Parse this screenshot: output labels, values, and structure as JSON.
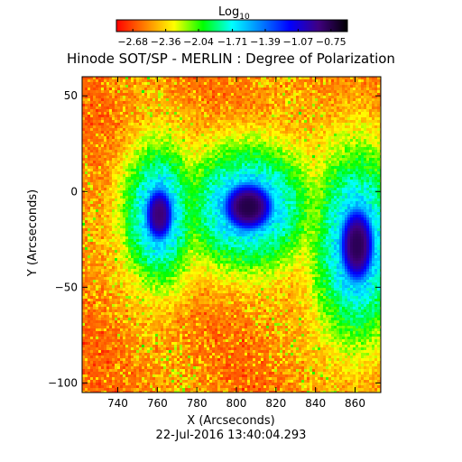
{
  "chart_data": {
    "type": "heatmap",
    "title": "Hinode SOT/SP - MERLIN : Degree of Polarization",
    "colorbar": {
      "label": "Log",
      "label_subscript": "10",
      "ticks": [
        "-2.68",
        "-2.36",
        "-2.04",
        "-1.71",
        "-1.39",
        "-1.07",
        "-0.75"
      ],
      "range": [
        -2.84,
        -0.59
      ],
      "colors": [
        "#ff0000",
        "#ff8000",
        "#ffff00",
        "#00ff00",
        "#00ffff",
        "#0080ff",
        "#0000ff",
        "#400080",
        "#000000"
      ]
    },
    "xlabel": "X (Arcseconds)",
    "ylabel": "Y (Arcseconds)",
    "xlim": [
      722,
      873
    ],
    "ylim": [
      -105,
      60
    ],
    "xticks": [
      740,
      760,
      780,
      800,
      820,
      840,
      860
    ],
    "yticks": [
      50,
      0,
      -50,
      -100
    ],
    "date_label": "22-Jul-2016 13:40:04.293",
    "features": [
      {
        "x": 761,
        "y": -12,
        "rx": 9,
        "ry": 18,
        "peak": -0.85
      },
      {
        "x": 806,
        "y": -8,
        "rx": 16,
        "ry": 16,
        "peak": -0.75
      },
      {
        "x": 861,
        "y": -28,
        "rx": 11,
        "ry": 25,
        "peak": -0.78
      }
    ]
  }
}
